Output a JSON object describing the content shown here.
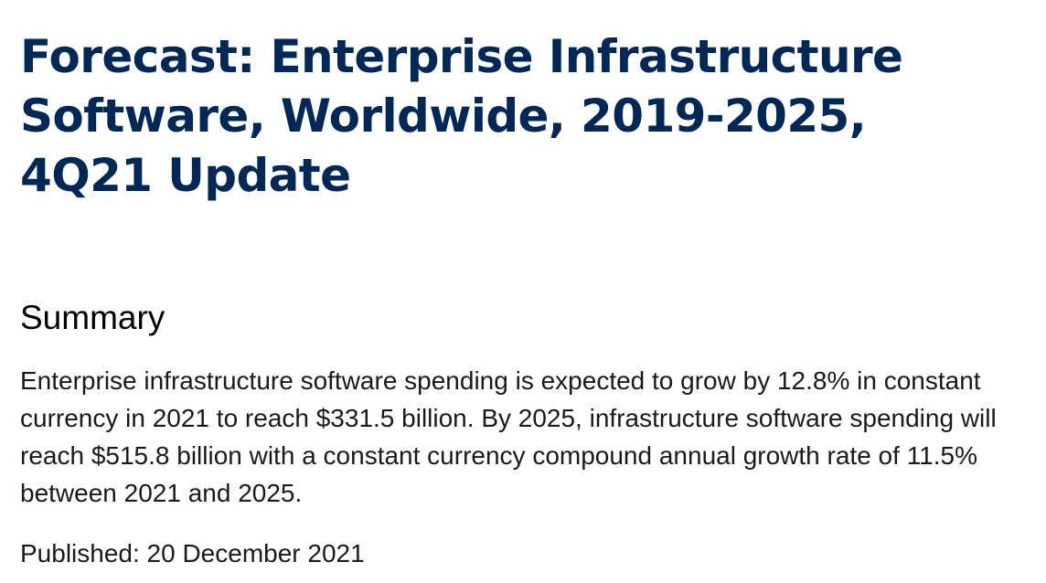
{
  "document": {
    "title": "Forecast: Enterprise Infrastructure Software, Worldwide, 2019-2025, 4Q21 Update",
    "summary_heading": "Summary",
    "summary_text": "Enterprise infrastructure software spending is expected to grow by 12.8% in constant currency in 2021 to reach $331.5 billion. By 2025, infrastructure software spending will reach $515.8 billion with a constant currency compound annual growth rate of 11.5% between 2021 and 2025.",
    "published_label": "Published: 20 December 2021"
  },
  "colors": {
    "title": "#002856",
    "text": "#1a1a1a"
  }
}
